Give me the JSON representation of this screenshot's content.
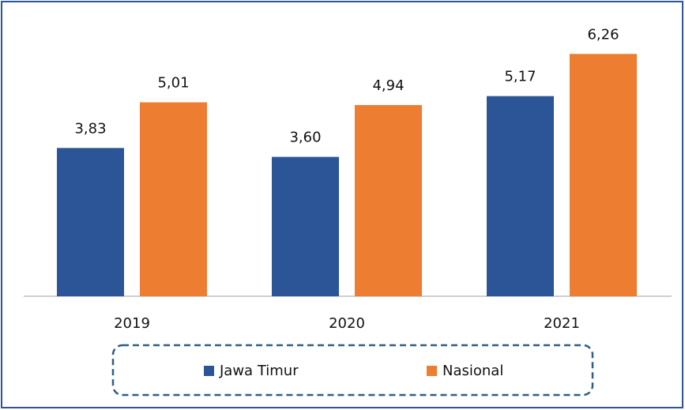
{
  "chart_data": {
    "type": "bar",
    "categories": [
      "2019",
      "2020",
      "2021"
    ],
    "series": [
      {
        "name": "Jawa Timur",
        "color": "#2b5597",
        "values": [
          3.83,
          3.6,
          5.17
        ],
        "value_labels": [
          "3,83",
          "3,60",
          "5,17"
        ]
      },
      {
        "name": "Nasional",
        "color": "#ed7d31",
        "values": [
          5.01,
          4.94,
          6.26
        ],
        "value_labels": [
          "5,01",
          "4,94",
          "6,26"
        ]
      }
    ],
    "ylim": [
      0,
      7
    ],
    "legend": "bottom"
  }
}
